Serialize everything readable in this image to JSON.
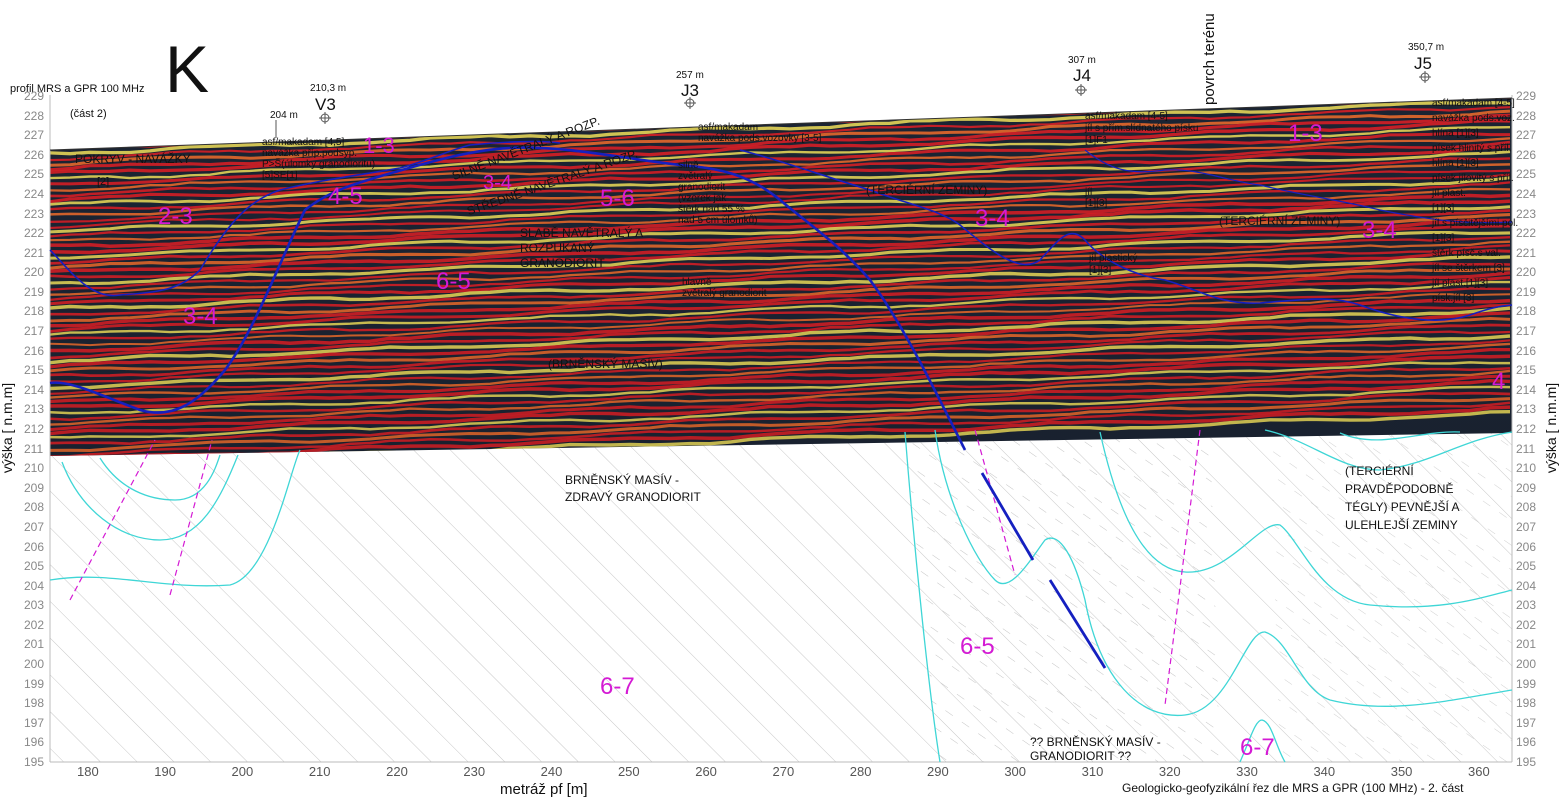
{
  "header": {
    "profile_title": "profil MRS a GPR 100 MHz",
    "part": "(část 2)",
    "section_letter": "K"
  },
  "axes": {
    "x_title": "metráž pf [m]",
    "y_title_left": "výška [ n.m.m]",
    "y_title_right": "výška [ n.m.m]",
    "x_ticks": [
      "180",
      "190",
      "200",
      "210",
      "220",
      "230",
      "240",
      "250",
      "260",
      "270",
      "280",
      "290",
      "300",
      "310",
      "320",
      "330",
      "340",
      "350",
      "360"
    ],
    "y_ticks": [
      "195",
      "196",
      "197",
      "198",
      "199",
      "200",
      "201",
      "202",
      "203",
      "204",
      "205",
      "206",
      "207",
      "208",
      "209",
      "210",
      "211",
      "212",
      "213",
      "214",
      "215",
      "216",
      "217",
      "218",
      "219",
      "220",
      "221",
      "222",
      "223",
      "224",
      "225",
      "226",
      "227",
      "228",
      "229"
    ]
  },
  "footer": "Geologicko-geofyzikální řez dle MRS a GPR (100 MHz) - 2. část",
  "terrain_label": "povrch terénu",
  "boreholes": [
    {
      "id": "V3",
      "dist": "210,3 m"
    },
    {
      "id": "J3",
      "dist": "257 m"
    },
    {
      "id": "J4",
      "dist": "307 m"
    },
    {
      "id": "J5",
      "dist": "350,7 m"
    }
  ],
  "extra_dist": "204 m",
  "log_notes": {
    "v3_log": [
      "asf/makadam [4,5]",
      "navážka příp.podsyp.",
      "P>Š(úlomky granodioritu)",
      "[5]SE[1]"
    ],
    "j3_log_top": [
      "asf/makadam",
      "navážka pods.vozovky [3-5]"
    ],
    "j3_log_mid": [
      "silně",
      "zvětralý",
      "granodiorit",
      "(vzorek jak",
      "štěrk nad 55 %",
      "nad 5 cm úlomků)"
    ],
    "j3_log_low": [
      "hlavně",
      "zvětralý granodiorit"
    ],
    "j4_log_top": [
      "asf/makadam [4-5]",
      "jíl s přím.slídnatého písku",
      "[1]F1"
    ],
    "j4_log_mid": [
      "jíl",
      "[1][3]"
    ],
    "j4_log_low": [
      "jíl plastický",
      "[1][3]"
    ],
    "j5_log": [
      "asf/makadam [4-5]",
      "navážka pods.voz.",
      "hlína [1][3]",
      "písek hlinitý s příl.",
      "hlína [1][3]",
      "písek jílovitý s příl.",
      "jíl plast.",
      "[1][3]",
      "jíl s písčitějšími pol.",
      "[1][3]",
      "štěrk písč.s val.",
      "jíl se štěrkem [3]",
      "jíl plast.[1][3]",
      "písk.jíl [3]"
    ]
  },
  "zones": {
    "cover": "POKRYV - NAVÁŽKY",
    "cover_index": "[2]",
    "strong_weather": "SILNĚ NAVĚTRALÝ A ROZP.",
    "medium_weather": "STŘEDNĚ NAVĚTRALÝ A ROZP.",
    "weak_weather": [
      "SLABĚ NAVĚTRALÝ A",
      "ROZPUKANÝ",
      "GRANODIORIT"
    ],
    "massif_gpr": "(BRNĚNSKÝ MASÍV)",
    "tertiary_1": "(TERCIÉRNÍ ZEMINY)",
    "tertiary_2": "(TERCIÉRNÍ ZEMINY)",
    "massif_sound": [
      "BRNĚNSKÝ MASÍV -",
      "ZDRAVÝ GRANODIORIT"
    ],
    "massif_uncertain": [
      "?? BRNĚNSKÝ MASÍV -",
      "GRANODIORIT ??"
    ],
    "tertiary_firm": [
      "(TERCIÉRNÍ",
      "PRAVDĚPODOBNĚ",
      "TÉGLY) PEVNĚJŠÍ A",
      "ULEHLEJŠÍ ZEMINY"
    ]
  },
  "rock_classes": [
    "1-3",
    "2-3",
    "4-5",
    "3-4",
    "5-6",
    "6-5",
    "3-4",
    "3-4",
    "1-3",
    "3-4",
    "4",
    "6-7",
    "6-5",
    "6-7"
  ],
  "colors": {
    "gpr_red": "#e21f26",
    "gpr_yellow": "#f1e15a",
    "gpr_dark": "#1b2433",
    "interpretation_line": "#1520c0",
    "magenta_label": "#d41ad4",
    "contour_cyan": "#3fd6d6"
  }
}
